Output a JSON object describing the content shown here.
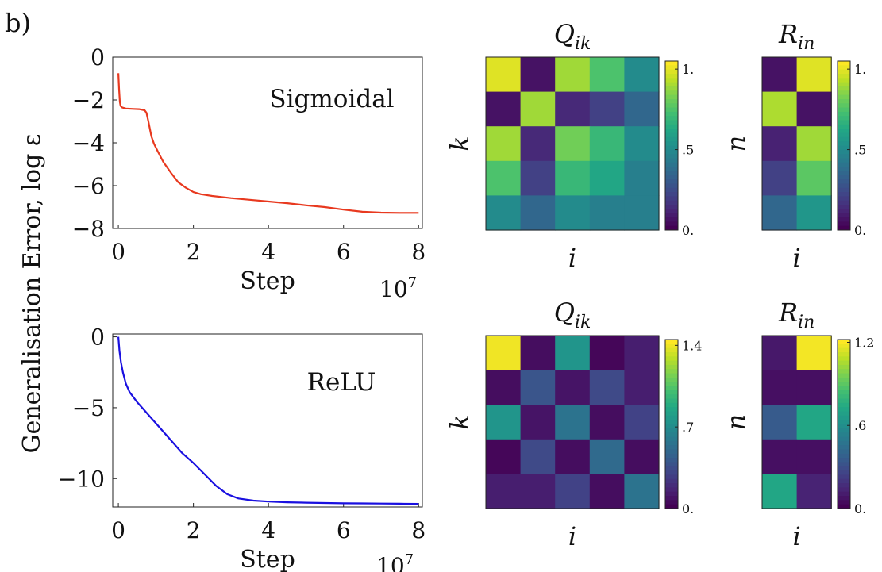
{
  "panel_label": "b)",
  "shared_ylabel": "Generalisation Error, log ε",
  "chart_data": [
    {
      "type": "line",
      "annotation": "Sigmoidal",
      "xlabel": "Step",
      "x_multiplier": "10^7",
      "x_tick_labels": [
        "0",
        "2",
        "4",
        "6",
        "8"
      ],
      "y_tick_labels": [
        "0",
        "−2",
        "−4",
        "−6",
        "−8"
      ],
      "xlim": [
        -0.15,
        8.1
      ],
      "ylim": [
        -8,
        0
      ],
      "grid": false,
      "color": "#e8391f",
      "series": [
        {
          "x": [
            0.0,
            0.02,
            0.04,
            0.06,
            0.1,
            0.2,
            0.4,
            0.55,
            0.7,
            0.75,
            0.8,
            0.88,
            0.95,
            1.05,
            1.2,
            1.4,
            1.6,
            1.8,
            2.0,
            2.2,
            2.5,
            3.0,
            3.5,
            4.0,
            4.5,
            5.0,
            5.5,
            6.0,
            6.5,
            7.0,
            7.5,
            8.0
          ],
          "y": [
            -0.75,
            -1.5,
            -2.1,
            -2.28,
            -2.35,
            -2.4,
            -2.42,
            -2.43,
            -2.48,
            -2.6,
            -3.0,
            -3.7,
            -4.05,
            -4.4,
            -4.9,
            -5.4,
            -5.85,
            -6.1,
            -6.3,
            -6.4,
            -6.48,
            -6.58,
            -6.66,
            -6.74,
            -6.82,
            -6.92,
            -7.0,
            -7.12,
            -7.22,
            -7.26,
            -7.27,
            -7.27
          ]
        }
      ]
    },
    {
      "type": "line",
      "annotation": "ReLU",
      "xlabel": "Step",
      "x_multiplier": "10^7",
      "x_tick_labels": [
        "0",
        "2",
        "4",
        "6",
        "8"
      ],
      "y_tick_labels": [
        "0",
        "−5",
        "−10"
      ],
      "xlim": [
        -0.15,
        8.1
      ],
      "ylim": [
        -12,
        0.2
      ],
      "grid": false,
      "color": "#1a10e0",
      "series": [
        {
          "x": [
            0.0,
            0.03,
            0.07,
            0.12,
            0.2,
            0.3,
            0.5,
            0.8,
            1.1,
            1.4,
            1.7,
            2.0,
            2.3,
            2.6,
            2.9,
            3.2,
            3.6,
            4.0,
            4.5,
            5.0,
            5.5,
            6.0,
            6.5,
            7.0,
            7.5,
            8.0
          ],
          "y": [
            0.0,
            -1.0,
            -1.8,
            -2.5,
            -3.3,
            -3.9,
            -4.6,
            -5.5,
            -6.4,
            -7.3,
            -8.2,
            -8.9,
            -9.7,
            -10.5,
            -11.1,
            -11.4,
            -11.55,
            -11.62,
            -11.67,
            -11.7,
            -11.72,
            -11.74,
            -11.75,
            -11.76,
            -11.77,
            -11.78
          ]
        }
      ]
    },
    {
      "type": "heatmap",
      "title": "Q_ik",
      "xlabel": "i",
      "ylabel": "k",
      "colormap": "viridis",
      "vmin": 0,
      "vmax": 1.05,
      "colorbar_ticks": [
        {
          "value": 1.0,
          "label": "1."
        },
        {
          "value": 0.5,
          "label": ".5"
        },
        {
          "value": 0.0,
          "label": "0."
        }
      ],
      "rows": [
        [
          1.0,
          0.05,
          0.9,
          0.75,
          0.5
        ],
        [
          0.05,
          0.9,
          0.12,
          0.2,
          0.35
        ],
        [
          0.9,
          0.12,
          0.82,
          0.7,
          0.5
        ],
        [
          0.75,
          0.2,
          0.7,
          0.62,
          0.45
        ],
        [
          0.5,
          0.35,
          0.5,
          0.45,
          0.45
        ]
      ]
    },
    {
      "type": "heatmap",
      "title": "R_in",
      "xlabel": "i",
      "ylabel": "n",
      "colormap": "viridis",
      "vmin": 0,
      "vmax": 1.05,
      "colorbar_ticks": [
        {
          "value": 1.0,
          "label": "1."
        },
        {
          "value": 0.5,
          "label": ".5"
        },
        {
          "value": 0.0,
          "label": "0."
        }
      ],
      "rows": [
        [
          0.05,
          1.0
        ],
        [
          0.92,
          0.05
        ],
        [
          0.1,
          0.9
        ],
        [
          0.2,
          0.78
        ],
        [
          0.35,
          0.55
        ]
      ]
    },
    {
      "type": "heatmap",
      "title": "Q_ik",
      "xlabel": "i",
      "ylabel": "k",
      "colormap": "viridis",
      "vmin": 0,
      "vmax": 1.45,
      "colorbar_ticks": [
        {
          "value": 1.4,
          "label": "1.4"
        },
        {
          "value": 0.7,
          "label": ".7"
        },
        {
          "value": 0.0,
          "label": "0."
        }
      ],
      "rows": [
        [
          1.42,
          0.05,
          0.75,
          0.02,
          0.12
        ],
        [
          0.05,
          0.38,
          0.08,
          0.32,
          0.12
        ],
        [
          0.75,
          0.08,
          0.55,
          0.05,
          0.28
        ],
        [
          0.02,
          0.32,
          0.05,
          0.5,
          0.05
        ],
        [
          0.12,
          0.12,
          0.28,
          0.05,
          0.55
        ]
      ]
    },
    {
      "type": "heatmap",
      "title": "R_in",
      "xlabel": "i",
      "ylabel": "n",
      "colormap": "viridis",
      "vmin": 0,
      "vmax": 1.22,
      "colorbar_ticks": [
        {
          "value": 1.2,
          "label": "1.2"
        },
        {
          "value": 0.6,
          "label": ".6"
        },
        {
          "value": 0.0,
          "label": "0."
        }
      ],
      "rows": [
        [
          0.08,
          1.2
        ],
        [
          0.05,
          0.05
        ],
        [
          0.35,
          0.72
        ],
        [
          0.05,
          0.05
        ],
        [
          0.72,
          0.12
        ]
      ]
    }
  ]
}
